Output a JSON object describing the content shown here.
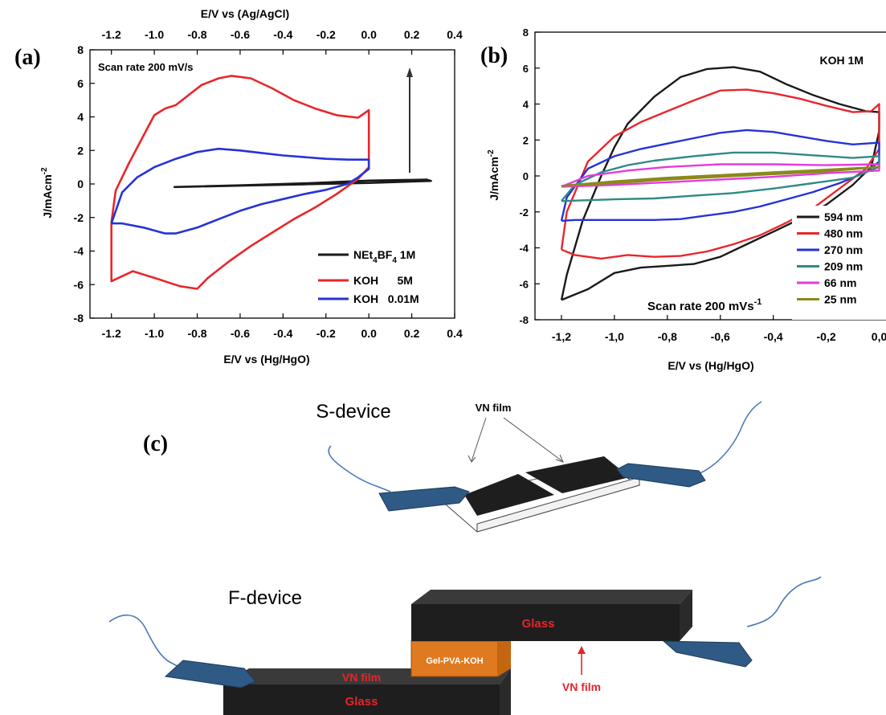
{
  "colors": {
    "black": "#1a1a1a",
    "red": "#e8262b",
    "blue": "#2633d6",
    "teal": "#2f8a86",
    "magenta": "#e43ae0",
    "olive": "#8a8a18",
    "electrode_blue": "#2f5a86",
    "film_black": "#1e1e1e",
    "gel_orange": "#e07a20",
    "glass_text_red": "#e3262b",
    "wire_blue": "#4a7ab8"
  },
  "panel_a": {
    "label": "(a)",
    "top_axis_title": "E/V vs (Ag/AgCl)",
    "bottom_axis_title": "E/V vs (Hg/HgO)",
    "y_axis_title_base": "J/mAcm",
    "y_axis_title_exp": "-2",
    "annotation": "Scan rate 200 mV/s",
    "top_ticks": [
      "-1.2",
      "-1.0",
      "-0.8",
      "-0.6",
      "-0.4",
      "-0.2",
      "0.0",
      "0.2",
      "0.4"
    ],
    "bottom_ticks": [
      "-1.2",
      "-1.0",
      "-0.8",
      "-0.6",
      "-0.4",
      "-0.2",
      "0.0",
      "0.2",
      "0.4"
    ],
    "y_ticks": [
      "8",
      "6",
      "4",
      "2",
      "0",
      "-2",
      "-4",
      "-6",
      "-8"
    ],
    "legend": [
      {
        "base": "NEt",
        "sub1": "4",
        "mid": "BF",
        "sub2": "4",
        "tail": " 1M"
      },
      {
        "base": "KOH      5M"
      },
      {
        "base": "KOH   0.01M"
      }
    ]
  },
  "panel_b": {
    "label": "(b)",
    "title": "KOH 1M",
    "bottom_axis_title": "E/V vs (Hg/HgO)",
    "y_axis_title_base": "J/mAcm",
    "y_axis_title_exp": "-2",
    "annotation_base": "Scan rate 200 mVs",
    "annotation_exp": "-1",
    "x_ticks": [
      "-1,2",
      "-1,0",
      "-0,8",
      "-0,6",
      "-0,4",
      "-0,2",
      "0,0"
    ],
    "y_ticks": [
      "8",
      "6",
      "4",
      "2",
      "0",
      "-2",
      "-4",
      "-6",
      "-8"
    ],
    "legend": [
      "594 nm",
      "480 nm",
      "270 nm",
      "209 nm",
      "66   nm",
      "25   nm"
    ]
  },
  "panel_c": {
    "label": "(c)",
    "s_device_title": "S-device",
    "vn_film_top": "VN film",
    "f_device_title": "F-device",
    "glass_top": "Glass",
    "glass_bottom": "Glass",
    "gel": "Gel-PVA-KOH",
    "vn_film_inner": "VN film",
    "vn_film_arrow": "VN film"
  },
  "chart_data": [
    {
      "type": "line",
      "panel": "a",
      "xlabel": "E/V vs (Hg/HgO)",
      "x2label": "E/V vs (Ag/AgCl)",
      "ylabel": "J/mAcm-2",
      "xlim": [
        -1.3,
        0.4
      ],
      "ylim": [
        -8,
        8
      ],
      "annotation": "Scan rate 200 mV/s",
      "legend_position": "bottom-right",
      "series": [
        {
          "name": "NEt4BF4 1M",
          "color": "#1a1a1a",
          "points": [
            [
              -0.91,
              -0.18
            ],
            [
              -0.6,
              -0.1
            ],
            [
              -0.3,
              -0.02
            ],
            [
              0.0,
              0.06
            ],
            [
              0.29,
              0.18
            ],
            [
              0.27,
              0.26
            ],
            [
              0.0,
              0.2
            ],
            [
              -0.3,
              0.04
            ],
            [
              -0.6,
              -0.08
            ],
            [
              -0.91,
              -0.18
            ]
          ]
        },
        {
          "name": "KOH 5M",
          "color": "#e8262b",
          "points": [
            [
              -1.2,
              -2.3
            ],
            [
              -1.18,
              -0.4
            ],
            [
              -1.12,
              1.2
            ],
            [
              -1.05,
              2.9
            ],
            [
              -1.0,
              4.1
            ],
            [
              -0.95,
              4.5
            ],
            [
              -0.9,
              4.7
            ],
            [
              -0.85,
              5.2
            ],
            [
              -0.78,
              5.9
            ],
            [
              -0.7,
              6.3
            ],
            [
              -0.64,
              6.45
            ],
            [
              -0.55,
              6.3
            ],
            [
              -0.45,
              5.7
            ],
            [
              -0.35,
              5.0
            ],
            [
              -0.25,
              4.5
            ],
            [
              -0.15,
              4.1
            ],
            [
              -0.05,
              3.95
            ],
            [
              0.0,
              4.4
            ],
            [
              0.0,
              1.0
            ],
            [
              -0.05,
              0.3
            ],
            [
              -0.15,
              -0.6
            ],
            [
              -0.25,
              -1.4
            ],
            [
              -0.35,
              -2.1
            ],
            [
              -0.45,
              -2.9
            ],
            [
              -0.55,
              -3.7
            ],
            [
              -0.65,
              -4.6
            ],
            [
              -0.75,
              -5.6
            ],
            [
              -0.8,
              -6.25
            ],
            [
              -0.88,
              -6.1
            ],
            [
              -1.0,
              -5.6
            ],
            [
              -1.1,
              -5.2
            ],
            [
              -1.2,
              -5.8
            ],
            [
              -1.2,
              -2.3
            ]
          ]
        },
        {
          "name": "KOH 0.01M",
          "color": "#2633d6",
          "points": [
            [
              -1.2,
              -2.35
            ],
            [
              -1.15,
              -0.5
            ],
            [
              -1.08,
              0.4
            ],
            [
              -1.0,
              1.0
            ],
            [
              -0.9,
              1.5
            ],
            [
              -0.8,
              1.9
            ],
            [
              -0.7,
              2.1
            ],
            [
              -0.6,
              2.0
            ],
            [
              -0.5,
              1.85
            ],
            [
              -0.4,
              1.7
            ],
            [
              -0.3,
              1.6
            ],
            [
              -0.2,
              1.5
            ],
            [
              -0.1,
              1.45
            ],
            [
              0.0,
              1.45
            ],
            [
              0.0,
              0.9
            ],
            [
              -0.05,
              0.4
            ],
            [
              -0.1,
              0.0
            ],
            [
              -0.2,
              -0.35
            ],
            [
              -0.3,
              -0.6
            ],
            [
              -0.4,
              -0.9
            ],
            [
              -0.5,
              -1.2
            ],
            [
              -0.6,
              -1.6
            ],
            [
              -0.7,
              -2.1
            ],
            [
              -0.8,
              -2.6
            ],
            [
              -0.9,
              -2.95
            ],
            [
              -0.95,
              -2.95
            ],
            [
              -1.05,
              -2.6
            ],
            [
              -1.15,
              -2.35
            ],
            [
              -1.2,
              -2.35
            ]
          ]
        }
      ]
    },
    {
      "type": "line",
      "panel": "b",
      "title": "KOH 1M",
      "xlabel": "E/V vs (Hg/HgO)",
      "ylabel": "J/mAcm-2",
      "xlim": [
        -1.3,
        0.05
      ],
      "ylim": [
        -8,
        8
      ],
      "annotation": "Scan rate 200 mVs-1",
      "legend_position": "bottom-right",
      "series": [
        {
          "name": "594 nm",
          "color": "#1a1a1a",
          "points": [
            [
              -1.2,
              -6.9
            ],
            [
              -1.18,
              -5.5
            ],
            [
              -1.12,
              -2.5
            ],
            [
              -1.05,
              0.0
            ],
            [
              -1.0,
              1.6
            ],
            [
              -0.95,
              2.9
            ],
            [
              -0.85,
              4.4
            ],
            [
              -0.75,
              5.5
            ],
            [
              -0.65,
              5.95
            ],
            [
              -0.55,
              6.05
            ],
            [
              -0.45,
              5.8
            ],
            [
              -0.35,
              5.1
            ],
            [
              -0.25,
              4.5
            ],
            [
              -0.15,
              4.0
            ],
            [
              -0.05,
              3.6
            ],
            [
              0.0,
              3.55
            ],
            [
              0.0,
              2.5
            ],
            [
              -0.03,
              0.5
            ],
            [
              -0.1,
              -0.5
            ],
            [
              -0.2,
              -1.6
            ],
            [
              -0.3,
              -2.4
            ],
            [
              -0.4,
              -3.1
            ],
            [
              -0.5,
              -3.8
            ],
            [
              -0.6,
              -4.5
            ],
            [
              -0.7,
              -4.9
            ],
            [
              -0.8,
              -5.0
            ],
            [
              -0.9,
              -5.1
            ],
            [
              -1.0,
              -5.4
            ],
            [
              -1.1,
              -6.3
            ],
            [
              -1.2,
              -6.9
            ]
          ]
        },
        {
          "name": "480 nm",
          "color": "#e8262b",
          "points": [
            [
              -1.2,
              -4.1
            ],
            [
              -1.18,
              -2.0
            ],
            [
              -1.1,
              0.8
            ],
            [
              -1.0,
              2.2
            ],
            [
              -0.9,
              3.0
            ],
            [
              -0.8,
              3.6
            ],
            [
              -0.7,
              4.2
            ],
            [
              -0.6,
              4.75
            ],
            [
              -0.5,
              4.8
            ],
            [
              -0.4,
              4.6
            ],
            [
              -0.3,
              4.3
            ],
            [
              -0.2,
              3.9
            ],
            [
              -0.1,
              3.55
            ],
            [
              -0.03,
              3.6
            ],
            [
              0.0,
              4.0
            ],
            [
              0.0,
              1.5
            ],
            [
              -0.05,
              0.4
            ],
            [
              -0.15,
              -0.7
            ],
            [
              -0.25,
              -1.8
            ],
            [
              -0.35,
              -2.6
            ],
            [
              -0.45,
              -3.3
            ],
            [
              -0.55,
              -3.8
            ],
            [
              -0.65,
              -4.2
            ],
            [
              -0.75,
              -4.45
            ],
            [
              -0.85,
              -4.5
            ],
            [
              -0.95,
              -4.4
            ],
            [
              -1.05,
              -4.6
            ],
            [
              -1.15,
              -4.4
            ],
            [
              -1.2,
              -4.1
            ]
          ]
        },
        {
          "name": "270 nm",
          "color": "#2633d6",
          "points": [
            [
              -1.2,
              -2.5
            ],
            [
              -1.18,
              -1.2
            ],
            [
              -1.1,
              0.4
            ],
            [
              -1.0,
              1.1
            ],
            [
              -0.9,
              1.5
            ],
            [
              -0.8,
              1.8
            ],
            [
              -0.7,
              2.1
            ],
            [
              -0.6,
              2.4
            ],
            [
              -0.5,
              2.55
            ],
            [
              -0.4,
              2.45
            ],
            [
              -0.3,
              2.2
            ],
            [
              -0.2,
              1.95
            ],
            [
              -0.1,
              1.75
            ],
            [
              0.0,
              1.85
            ],
            [
              0.0,
              0.8
            ],
            [
              -0.05,
              0.2
            ],
            [
              -0.15,
              -0.4
            ],
            [
              -0.25,
              -0.9
            ],
            [
              -0.35,
              -1.3
            ],
            [
              -0.45,
              -1.7
            ],
            [
              -0.55,
              -2.0
            ],
            [
              -0.65,
              -2.2
            ],
            [
              -0.75,
              -2.4
            ],
            [
              -0.85,
              -2.45
            ],
            [
              -0.95,
              -2.45
            ],
            [
              -1.05,
              -2.45
            ],
            [
              -1.15,
              -2.45
            ],
            [
              -1.2,
              -2.5
            ]
          ]
        },
        {
          "name": "209 nm",
          "color": "#2f8a86",
          "points": [
            [
              -1.2,
              -1.4
            ],
            [
              -1.15,
              -0.5
            ],
            [
              -1.05,
              0.2
            ],
            [
              -0.95,
              0.6
            ],
            [
              -0.85,
              0.85
            ],
            [
              -0.7,
              1.1
            ],
            [
              -0.55,
              1.3
            ],
            [
              -0.4,
              1.3
            ],
            [
              -0.25,
              1.15
            ],
            [
              -0.1,
              1.0
            ],
            [
              0.0,
              1.1
            ],
            [
              0.0,
              0.5
            ],
            [
              -0.1,
              -0.1
            ],
            [
              -0.25,
              -0.4
            ],
            [
              -0.4,
              -0.7
            ],
            [
              -0.55,
              -0.95
            ],
            [
              -0.7,
              -1.1
            ],
            [
              -0.85,
              -1.25
            ],
            [
              -1.0,
              -1.3
            ],
            [
              -1.1,
              -1.35
            ],
            [
              -1.2,
              -1.4
            ]
          ]
        },
        {
          "name": "66   nm",
          "color": "#e43ae0",
          "points": [
            [
              -1.2,
              -0.6
            ],
            [
              -1.1,
              0.0
            ],
            [
              -0.95,
              0.3
            ],
            [
              -0.8,
              0.5
            ],
            [
              -0.6,
              0.65
            ],
            [
              -0.4,
              0.65
            ],
            [
              -0.2,
              0.6
            ],
            [
              0.0,
              0.65
            ],
            [
              0.0,
              0.3
            ],
            [
              -0.2,
              0.15
            ],
            [
              -0.4,
              -0.05
            ],
            [
              -0.6,
              -0.2
            ],
            [
              -0.8,
              -0.35
            ],
            [
              -1.0,
              -0.5
            ],
            [
              -1.2,
              -0.6
            ]
          ]
        },
        {
          "name": "25   nm",
          "color": "#8a8a18",
          "points": [
            [
              -1.2,
              -0.55
            ],
            [
              -1.0,
              -0.3
            ],
            [
              -0.8,
              -0.1
            ],
            [
              -0.6,
              0.05
            ],
            [
              -0.4,
              0.2
            ],
            [
              -0.2,
              0.35
            ],
            [
              0.0,
              0.5
            ],
            [
              -0.2,
              0.25
            ],
            [
              -0.4,
              0.1
            ],
            [
              -0.6,
              -0.05
            ],
            [
              -0.8,
              -0.2
            ],
            [
              -1.0,
              -0.4
            ],
            [
              -1.2,
              -0.55
            ]
          ]
        }
      ]
    }
  ]
}
